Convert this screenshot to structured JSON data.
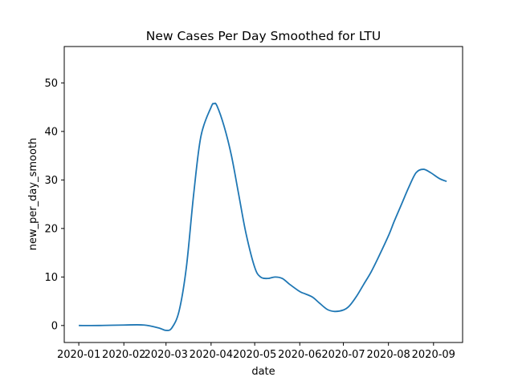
{
  "chart_data": {
    "type": "line",
    "title": "New Cases Per Day Smoothed for LTU",
    "xlabel": "date",
    "ylabel": "new_per_day_smooth",
    "x_ticks": [
      "2020-01",
      "2020-02",
      "2020-03",
      "2020-04",
      "2020-05",
      "2020-06",
      "2020-07",
      "2020-08",
      "2020-09"
    ],
    "y_ticks": [
      0,
      10,
      20,
      30,
      40,
      50
    ],
    "xlim": [
      "2019-12-22",
      "2020-09-21"
    ],
    "ylim": [
      -3.5,
      57.5
    ],
    "grid": false,
    "line_color": "#1f77b4",
    "series": [
      {
        "x": [
          "2020-01-01",
          "2020-01-15",
          "2020-02-01",
          "2020-02-15",
          "2020-02-25",
          "2020-03-01",
          "2020-03-05",
          "2020-03-10",
          "2020-03-15",
          "2020-03-20",
          "2020-03-25",
          "2020-04-01",
          "2020-04-03",
          "2020-04-05",
          "2020-04-10",
          "2020-04-15",
          "2020-04-20",
          "2020-04-25",
          "2020-05-01",
          "2020-05-05",
          "2020-05-10",
          "2020-05-15",
          "2020-05-20",
          "2020-05-25",
          "2020-06-01",
          "2020-06-05",
          "2020-06-10",
          "2020-06-15",
          "2020-06-20",
          "2020-06-25",
          "2020-07-01",
          "2020-07-05",
          "2020-07-10",
          "2020-07-15",
          "2020-07-20",
          "2020-07-25",
          "2020-08-01",
          "2020-08-05",
          "2020-08-10",
          "2020-08-15",
          "2020-08-20",
          "2020-08-25",
          "2020-08-30",
          "2020-09-05",
          "2020-09-10"
        ],
        "y": [
          0,
          0,
          0.1,
          0.1,
          -0.5,
          -1.0,
          -0.5,
          3,
          12,
          27,
          39,
          45,
          45.7,
          45.3,
          41,
          35,
          27,
          19,
          12,
          10,
          9.7,
          10,
          9.7,
          8.5,
          7,
          6.5,
          5.8,
          4.5,
          3.3,
          2.9,
          3.2,
          4,
          6,
          8.5,
          11,
          14,
          18.5,
          21.5,
          25,
          28.5,
          31.5,
          32.2,
          31.5,
          30.3,
          29.7
        ]
      }
    ]
  }
}
